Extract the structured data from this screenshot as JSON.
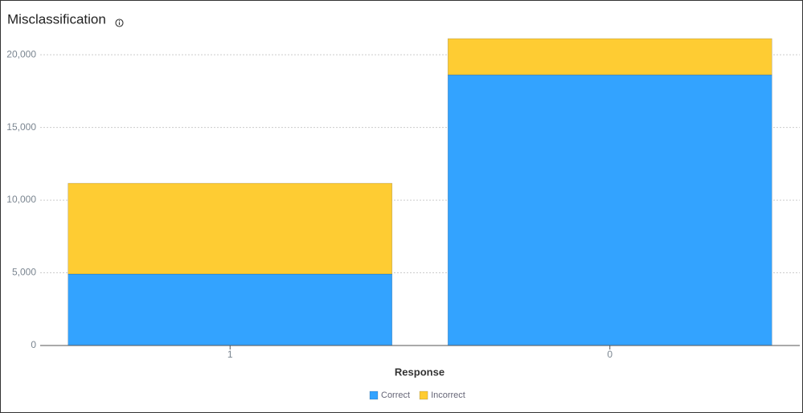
{
  "chart_data": {
    "type": "stacked_bar",
    "title": "Misclassification",
    "x_label": "Response",
    "categories": [
      "1",
      "0"
    ],
    "series": [
      {
        "name": "Correct",
        "color": "#33a3ff",
        "values": [
          4920,
          18620
        ]
      },
      {
        "name": "Incorrect",
        "color": "#fecc33",
        "values": [
          6240,
          2490
        ]
      }
    ],
    "ylim": [
      0,
      21500
    ],
    "yticks": [
      0,
      {
        "value": 5000,
        "label": "5,000"
      },
      {
        "value": 10000,
        "label": "10,000"
      },
      {
        "value": 15000,
        "label": "15,000"
      },
      {
        "value": 20000,
        "label": "20,000"
      }
    ],
    "grid": true,
    "legend": "bottom"
  }
}
